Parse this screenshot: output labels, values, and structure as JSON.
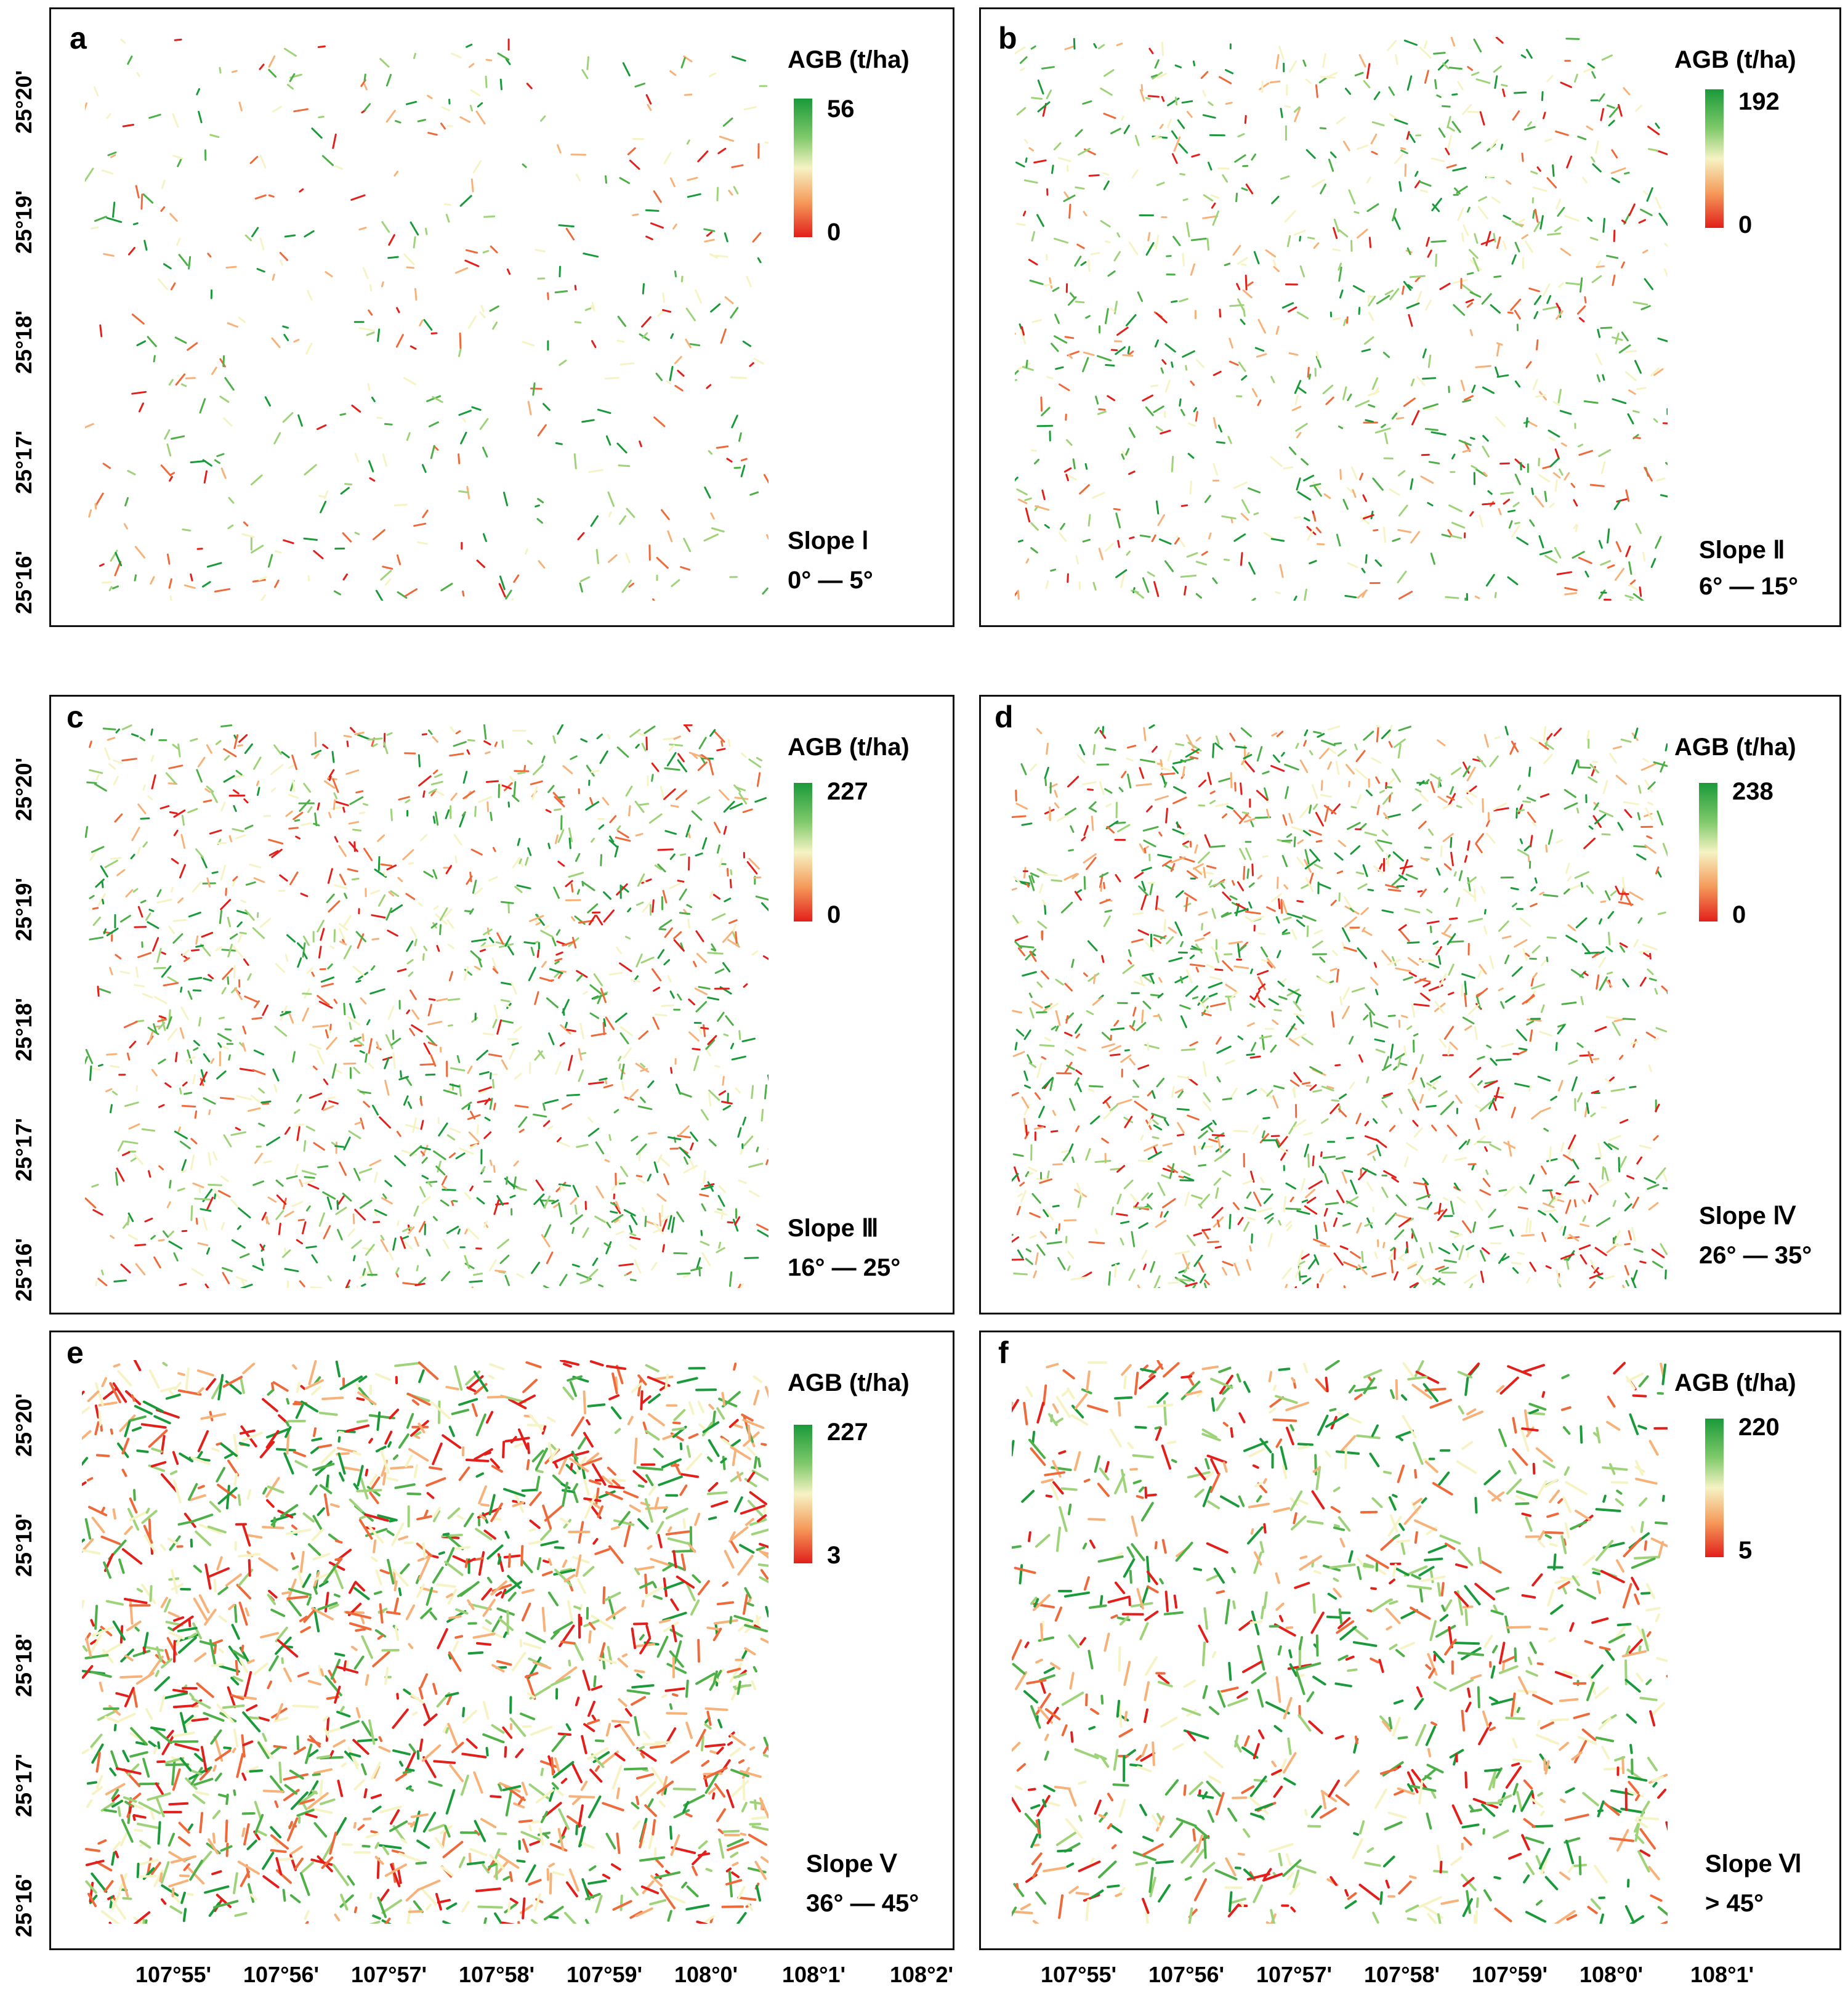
{
  "legend_title": "AGB (t/ha)",
  "colors": {
    "high": "#1a9a3a",
    "mid": "#f6f3c4",
    "low": "#e21f1a"
  },
  "chart_data": {
    "type": "map-panels",
    "legend_title": "AGB (t/ha)",
    "x_ticks_left": [
      "107°55'",
      "107°56'",
      "107°57'",
      "107°58'",
      "107°59'",
      "108°0'",
      "108°1'",
      "108°2'"
    ],
    "x_ticks_right": [
      "107°55'",
      "107°56'",
      "107°57'",
      "107°58'",
      "107°59'",
      "108°0'",
      "108°1'"
    ],
    "y_ticks": [
      "25°20'",
      "25°19'",
      "25°18'",
      "25°17'",
      "25°16'"
    ],
    "panels": [
      {
        "label": "a",
        "legend_max": "56",
        "legend_min": "0",
        "slope_name": "Slope Ⅰ",
        "slope_range": "0° — 5°",
        "density": 0.18,
        "red_share": 0.35
      },
      {
        "label": "b",
        "legend_max": "192",
        "legend_min": "0",
        "slope_name": "Slope Ⅱ",
        "slope_range": "6° — 15°",
        "density": 0.35,
        "red_share": 0.3
      },
      {
        "label": "c",
        "legend_max": "227",
        "legend_min": "0",
        "slope_name": "Slope Ⅲ",
        "slope_range": "16° — 25°",
        "density": 0.55,
        "red_share": 0.35
      },
      {
        "label": "d",
        "legend_max": "238",
        "legend_min": "0",
        "slope_name": "Slope Ⅳ",
        "slope_range": "26° — 35°",
        "density": 0.6,
        "red_share": 0.4
      },
      {
        "label": "e",
        "legend_max": "227",
        "legend_min": "3",
        "slope_name": "Slope Ⅴ",
        "slope_range": "36° — 45°",
        "density": 0.65,
        "red_share": 0.45
      },
      {
        "label": "f",
        "legend_max": "220",
        "legend_min": "5",
        "slope_name": "Slope Ⅵ",
        "slope_range": "> 45°",
        "density": 0.4,
        "red_share": 0.4
      }
    ]
  }
}
